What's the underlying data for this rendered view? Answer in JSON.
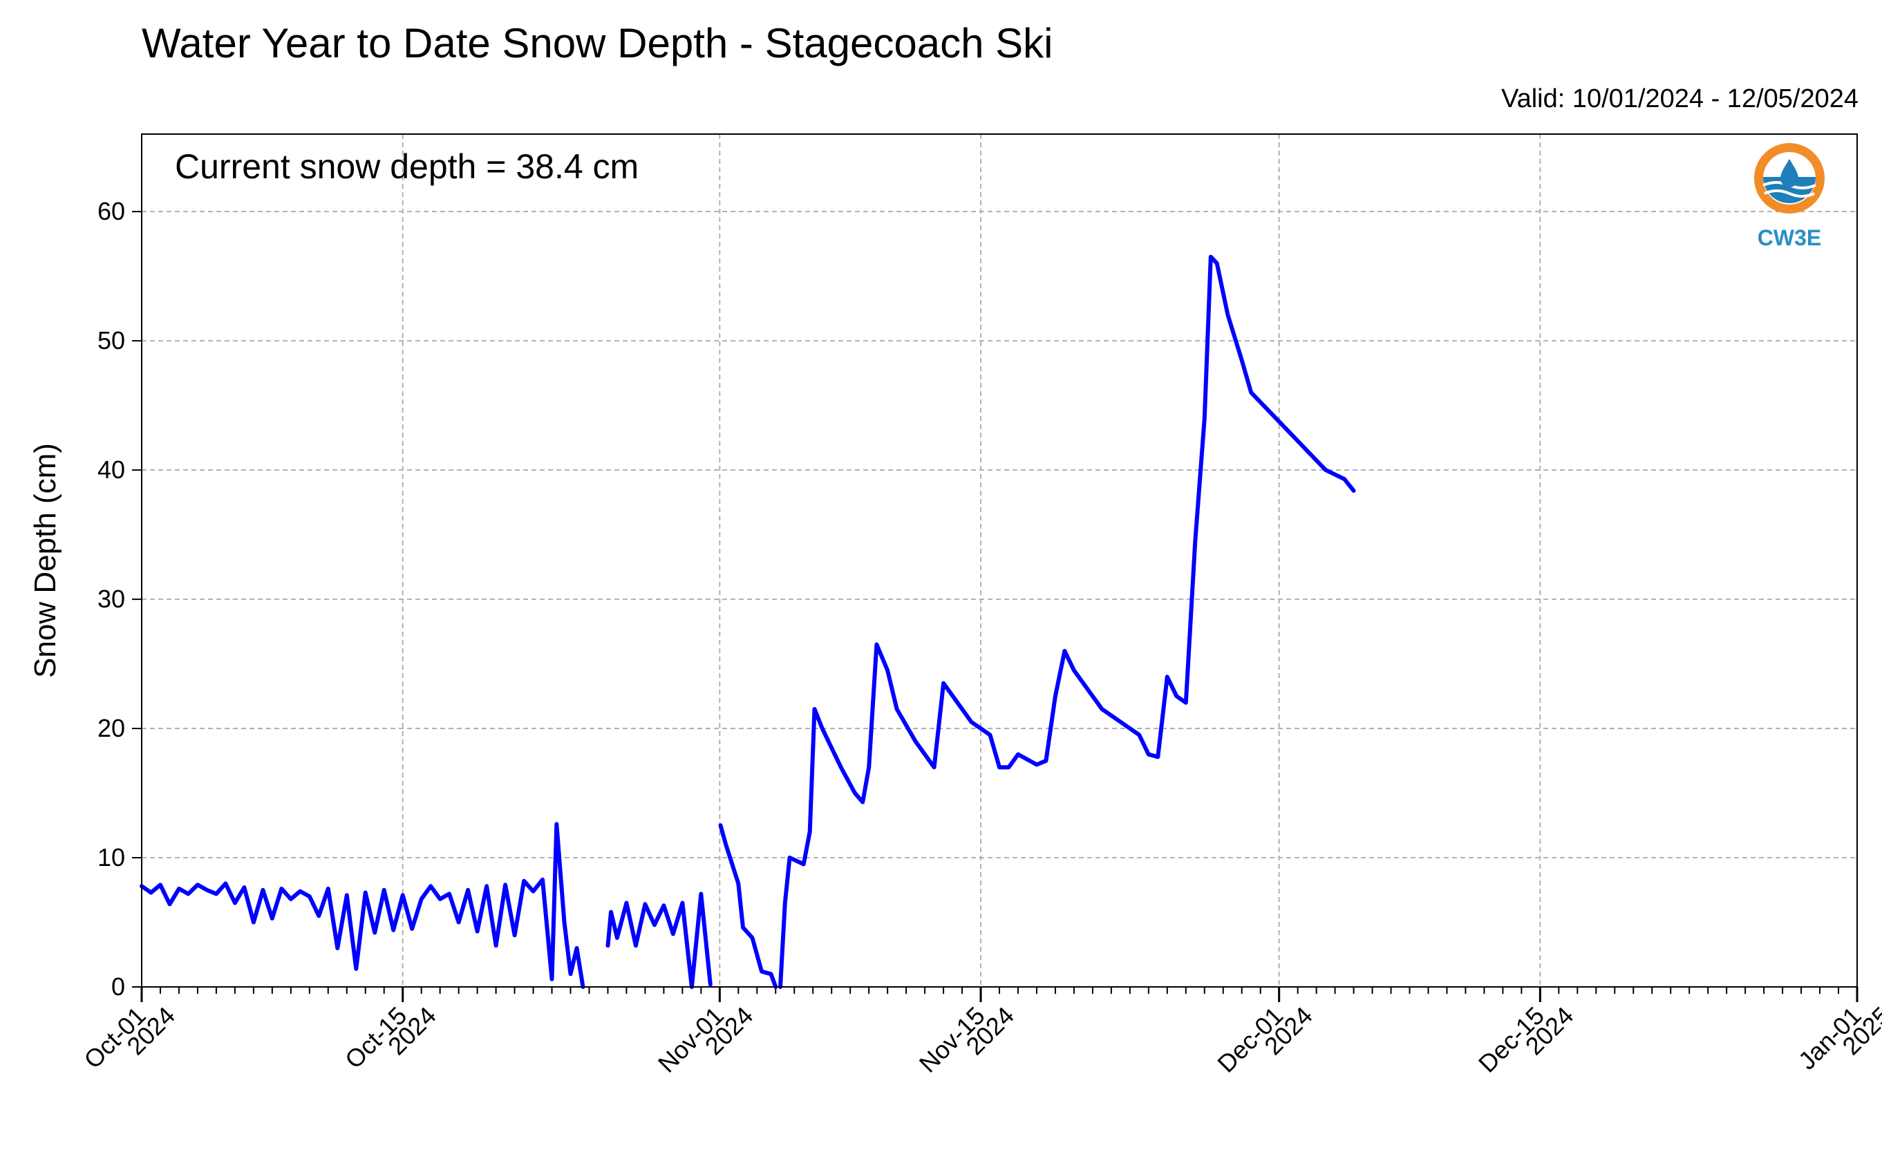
{
  "chart_data": {
    "type": "line",
    "title": "Water Year to Date Snow Depth - Stagecoach Ski",
    "subtitle": "Valid: 10/01/2024 - 12/05/2024",
    "xlabel": "",
    "ylabel": "Snow Depth (cm)",
    "ylim": [
      0,
      66
    ],
    "xlim": [
      "2024-10-01",
      "2025-01-01"
    ],
    "yticks": [
      0,
      10,
      20,
      30,
      40,
      50,
      60
    ],
    "xticks": [
      {
        "date": "2024-10-01",
        "label": [
          "Oct-01",
          "2024"
        ]
      },
      {
        "date": "2024-10-15",
        "label": [
          "Oct-15",
          "2024"
        ]
      },
      {
        "date": "2024-11-01",
        "label": [
          "Nov-01",
          "2024"
        ]
      },
      {
        "date": "2024-11-15",
        "label": [
          "Nov-15",
          "2024"
        ]
      },
      {
        "date": "2024-12-01",
        "label": [
          "Dec-01",
          "2024"
        ]
      },
      {
        "date": "2024-12-15",
        "label": [
          "Dec-15",
          "2024"
        ]
      },
      {
        "date": "2025-01-01",
        "label": [
          "Jan-01",
          "2025"
        ]
      }
    ],
    "grid": true,
    "annotation": "Current snow depth = 38.4 cm",
    "line_color": "#0000ff",
    "series": [
      {
        "segments": [
          [
            [
              "2024-10-01T00:00",
              7.8
            ],
            [
              "2024-10-01T12:00",
              7.3
            ],
            [
              "2024-10-02T00:00",
              7.9
            ],
            [
              "2024-10-02T12:00",
              6.4
            ],
            [
              "2024-10-03T00:00",
              7.6
            ],
            [
              "2024-10-03T12:00",
              7.2
            ],
            [
              "2024-10-04T00:00",
              7.9
            ],
            [
              "2024-10-04T12:00",
              7.5
            ],
            [
              "2024-10-05T00:00",
              7.2
            ],
            [
              "2024-10-05T12:00",
              8.0
            ],
            [
              "2024-10-06T00:00",
              6.5
            ],
            [
              "2024-10-06T12:00",
              7.7
            ],
            [
              "2024-10-07T00:00",
              5.0
            ],
            [
              "2024-10-07T12:00",
              7.5
            ],
            [
              "2024-10-08T00:00",
              5.3
            ],
            [
              "2024-10-08T12:00",
              7.6
            ],
            [
              "2024-10-09T00:00",
              6.8
            ],
            [
              "2024-10-09T12:00",
              7.4
            ],
            [
              "2024-10-10T00:00",
              7.0
            ],
            [
              "2024-10-10T12:00",
              5.5
            ],
            [
              "2024-10-11T00:00",
              7.6
            ],
            [
              "2024-10-11T12:00",
              3.0
            ],
            [
              "2024-10-12T00:00",
              7.1
            ],
            [
              "2024-10-12T12:00",
              1.4
            ],
            [
              "2024-10-13T00:00",
              7.3
            ],
            [
              "2024-10-13T12:00",
              4.2
            ],
            [
              "2024-10-14T00:00",
              7.5
            ],
            [
              "2024-10-14T12:00",
              4.4
            ],
            [
              "2024-10-15T00:00",
              7.1
            ],
            [
              "2024-10-15T12:00",
              4.5
            ],
            [
              "2024-10-16T00:00",
              6.8
            ],
            [
              "2024-10-16T12:00",
              7.8
            ],
            [
              "2024-10-17T00:00",
              6.8
            ],
            [
              "2024-10-17T12:00",
              7.2
            ],
            [
              "2024-10-18T00:00",
              5.0
            ],
            [
              "2024-10-18T12:00",
              7.5
            ],
            [
              "2024-10-19T00:00",
              4.3
            ],
            [
              "2024-10-19T12:00",
              7.8
            ],
            [
              "2024-10-20T00:00",
              3.2
            ],
            [
              "2024-10-20T12:00",
              7.9
            ],
            [
              "2024-10-21T00:00",
              4.0
            ],
            [
              "2024-10-21T12:00",
              8.2
            ],
            [
              "2024-10-22T00:00",
              7.4
            ],
            [
              "2024-10-22T12:00",
              8.3
            ],
            [
              "2024-10-23T00:00",
              0.6
            ],
            [
              "2024-10-23T06:00",
              12.6
            ],
            [
              "2024-10-23T16:00",
              5.0
            ],
            [
              "2024-10-24T00:00",
              1.0
            ],
            [
              "2024-10-24T08:00",
              3.0
            ],
            [
              "2024-10-24T16:00",
              0.0
            ]
          ],
          [
            [
              "2024-10-26T00:00",
              3.2
            ],
            [
              "2024-10-26T04:00",
              5.8
            ],
            [
              "2024-10-26T12:00",
              3.8
            ],
            [
              "2024-10-27T00:00",
              6.5
            ],
            [
              "2024-10-27T12:00",
              3.2
            ],
            [
              "2024-10-28T00:00",
              6.4
            ],
            [
              "2024-10-28T12:00",
              4.8
            ],
            [
              "2024-10-29T00:00",
              6.3
            ],
            [
              "2024-10-29T12:00",
              4.1
            ],
            [
              "2024-10-30T00:00",
              6.5
            ],
            [
              "2024-10-30T12:00",
              0.0
            ],
            [
              "2024-10-31T00:00",
              7.2
            ],
            [
              "2024-10-31T12:00",
              0.2
            ]
          ],
          [
            [
              "2024-11-01T01:00",
              12.5
            ],
            [
              "2024-11-01T08:00",
              11.0
            ],
            [
              "2024-11-02T00:00",
              8.0
            ],
            [
              "2024-11-02T06:00",
              4.6
            ],
            [
              "2024-11-02T18:00",
              3.8
            ],
            [
              "2024-11-03T06:00",
              1.2
            ],
            [
              "2024-11-03T18:00",
              1.0
            ],
            [
              "2024-11-04T00:00",
              0.0
            ]
          ],
          [
            [
              "2024-11-04T06:00",
              0.0
            ],
            [
              "2024-11-04T12:00",
              6.5
            ],
            [
              "2024-11-04T18:00",
              10.0
            ],
            [
              "2024-11-05T12:00",
              9.5
            ],
            [
              "2024-11-05T20:00",
              12.0
            ],
            [
              "2024-11-06T02:00",
              21.5
            ],
            [
              "2024-11-06T12:00",
              20.0
            ],
            [
              "2024-11-07T12:00",
              17.0
            ],
            [
              "2024-11-08T06:00",
              15.0
            ],
            [
              "2024-11-08T16:00",
              14.3
            ],
            [
              "2024-11-09T00:00",
              17.0
            ],
            [
              "2024-11-09T10:00",
              26.5
            ],
            [
              "2024-11-10T00:00",
              24.5
            ],
            [
              "2024-11-10T12:00",
              21.5
            ],
            [
              "2024-11-11T12:00",
              19.0
            ],
            [
              "2024-11-12T12:00",
              17.0
            ],
            [
              "2024-11-13T00:00",
              23.5
            ],
            [
              "2024-11-13T12:00",
              22.5
            ],
            [
              "2024-11-14T12:00",
              20.5
            ],
            [
              "2024-11-15T12:00",
              19.5
            ],
            [
              "2024-11-16T00:00",
              17.0
            ],
            [
              "2024-11-16T12:00",
              17.0
            ],
            [
              "2024-11-17T00:00",
              18.0
            ],
            [
              "2024-11-18T00:00",
              17.2
            ],
            [
              "2024-11-18T12:00",
              17.5
            ],
            [
              "2024-11-19T00:00",
              22.5
            ],
            [
              "2024-11-19T12:00",
              26.0
            ],
            [
              "2024-11-20T00:00",
              24.5
            ],
            [
              "2024-11-20T12:00",
              23.5
            ],
            [
              "2024-11-21T12:00",
              21.5
            ],
            [
              "2024-11-22T12:00",
              20.5
            ],
            [
              "2024-11-23T12:00",
              19.5
            ],
            [
              "2024-11-24T00:00",
              18.0
            ],
            [
              "2024-11-24T12:00",
              17.8
            ],
            [
              "2024-11-25T00:00",
              24.0
            ],
            [
              "2024-11-25T12:00",
              22.5
            ],
            [
              "2024-11-26T00:00",
              22.0
            ],
            [
              "2024-11-26T12:00",
              34.5
            ],
            [
              "2024-11-27T00:00",
              44.0
            ],
            [
              "2024-11-27T08:00",
              56.5
            ],
            [
              "2024-11-27T16:00",
              56.0
            ],
            [
              "2024-11-28T06:00",
              52.0
            ],
            [
              "2024-11-29T00:00",
              48.5
            ],
            [
              "2024-11-29T12:00",
              46.0
            ],
            [
              "2024-11-30T12:00",
              44.5
            ],
            [
              "2024-12-01T12:00",
              43.0
            ],
            [
              "2024-12-02T12:00",
              41.5
            ],
            [
              "2024-12-03T12:00",
              40.0
            ],
            [
              "2024-12-04T12:00",
              39.3
            ],
            [
              "2024-12-05T00:00",
              38.4
            ]
          ]
        ]
      }
    ]
  },
  "logo": {
    "text": "CW3E",
    "colors": {
      "orange": "#f28c28",
      "blue": "#1f7fb8",
      "text": "#2a8fc4"
    }
  }
}
